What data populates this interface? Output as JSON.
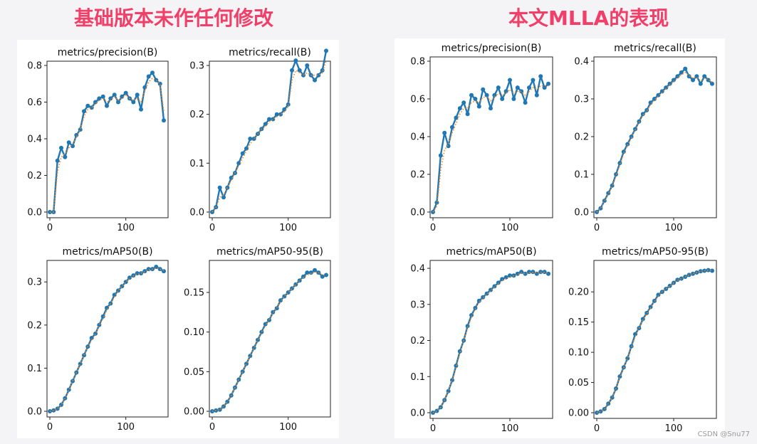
{
  "headings": {
    "left": "基础版本未作任何修改",
    "right": "本文MLLA的表现"
  },
  "watermark": "CSDN @Snu77",
  "colors": {
    "heading": "#f0406a",
    "series": "#1f77b4",
    "smooth": "#ff7f0e"
  },
  "chart_data": [
    {
      "id": "base-precision",
      "group": "left",
      "type": "line",
      "title": "metrics/precision(B)",
      "xlim": [
        0,
        150
      ],
      "ylim": [
        0,
        0.8
      ],
      "xticks": [
        0,
        100
      ],
      "yticks": [
        0.0,
        0.2,
        0.4,
        0.6,
        0.8
      ],
      "ytick_labels": [
        "0.0",
        "0.2",
        "0.4",
        "0.6",
        "0.8"
      ],
      "x": [
        0,
        5,
        10,
        15,
        20,
        25,
        30,
        35,
        40,
        45,
        50,
        55,
        60,
        65,
        70,
        75,
        80,
        85,
        90,
        95,
        100,
        105,
        110,
        115,
        120,
        125,
        130,
        135,
        140,
        145,
        150
      ],
      "y": [
        0.0,
        0.0,
        0.28,
        0.35,
        0.3,
        0.38,
        0.36,
        0.42,
        0.45,
        0.55,
        0.58,
        0.57,
        0.6,
        0.62,
        0.63,
        0.58,
        0.62,
        0.64,
        0.6,
        0.63,
        0.65,
        0.62,
        0.6,
        0.64,
        0.56,
        0.68,
        0.74,
        0.76,
        0.72,
        0.7,
        0.5
      ],
      "smooth": [
        0.0,
        0.0,
        0.22,
        0.3,
        0.32,
        0.35,
        0.37,
        0.41,
        0.45,
        0.52,
        0.56,
        0.57,
        0.59,
        0.61,
        0.62,
        0.6,
        0.61,
        0.63,
        0.61,
        0.62,
        0.64,
        0.62,
        0.61,
        0.62,
        0.6,
        0.66,
        0.71,
        0.73,
        0.72,
        0.7,
        0.55
      ]
    },
    {
      "id": "base-recall",
      "group": "left",
      "type": "line",
      "title": "metrics/recall(B)",
      "xlim": [
        0,
        150
      ],
      "ylim": [
        0,
        0.3
      ],
      "xticks": [
        0,
        100
      ],
      "yticks": [
        0.0,
        0.1,
        0.2,
        0.3
      ],
      "ytick_labels": [
        "0.0",
        "0.1",
        "0.2",
        "0.3"
      ],
      "x": [
        0,
        5,
        10,
        15,
        20,
        25,
        30,
        35,
        40,
        45,
        50,
        55,
        60,
        65,
        70,
        75,
        80,
        85,
        90,
        95,
        100,
        105,
        110,
        115,
        120,
        125,
        130,
        135,
        140,
        145,
        150
      ],
      "y": [
        0.0,
        0.01,
        0.05,
        0.03,
        0.05,
        0.07,
        0.08,
        0.1,
        0.12,
        0.13,
        0.15,
        0.15,
        0.16,
        0.17,
        0.18,
        0.19,
        0.19,
        0.2,
        0.2,
        0.21,
        0.22,
        0.29,
        0.31,
        0.29,
        0.28,
        0.3,
        0.28,
        0.27,
        0.28,
        0.29,
        0.33
      ],
      "smooth": [
        0.0,
        0.01,
        0.03,
        0.035,
        0.05,
        0.065,
        0.08,
        0.095,
        0.11,
        0.125,
        0.14,
        0.15,
        0.16,
        0.17,
        0.175,
        0.185,
        0.19,
        0.195,
        0.2,
        0.205,
        0.215,
        0.27,
        0.29,
        0.285,
        0.28,
        0.285,
        0.28,
        0.28,
        0.28,
        0.285,
        0.31
      ]
    },
    {
      "id": "base-map50",
      "group": "left",
      "type": "line",
      "title": "metrics/mAP50(B)",
      "xlim": [
        0,
        150
      ],
      "ylim": [
        0,
        0.34
      ],
      "xticks": [
        0,
        100
      ],
      "yticks": [
        0.0,
        0.1,
        0.2,
        0.3
      ],
      "ytick_labels": [
        "0.0",
        "0.1",
        "0.2",
        "0.3"
      ],
      "x": [
        0,
        5,
        10,
        15,
        20,
        25,
        30,
        35,
        40,
        45,
        50,
        55,
        60,
        65,
        70,
        75,
        80,
        85,
        90,
        95,
        100,
        105,
        110,
        115,
        120,
        125,
        130,
        135,
        140,
        145,
        150
      ],
      "y": [
        0.0,
        0.002,
        0.006,
        0.015,
        0.03,
        0.05,
        0.07,
        0.09,
        0.11,
        0.13,
        0.15,
        0.17,
        0.18,
        0.2,
        0.22,
        0.24,
        0.25,
        0.27,
        0.28,
        0.29,
        0.3,
        0.31,
        0.315,
        0.32,
        0.32,
        0.325,
        0.33,
        0.33,
        0.335,
        0.33,
        0.325
      ],
      "smooth": [
        0.0,
        0.002,
        0.006,
        0.015,
        0.03,
        0.05,
        0.07,
        0.09,
        0.11,
        0.13,
        0.15,
        0.165,
        0.18,
        0.2,
        0.215,
        0.235,
        0.25,
        0.265,
        0.28,
        0.29,
        0.3,
        0.308,
        0.314,
        0.318,
        0.32,
        0.324,
        0.328,
        0.33,
        0.332,
        0.33,
        0.327
      ]
    },
    {
      "id": "base-map50-95",
      "group": "left",
      "type": "line",
      "title": "metrics/mAP50-95(B)",
      "xlim": [
        0,
        150
      ],
      "ylim": [
        0,
        0.185
      ],
      "xticks": [
        0,
        100
      ],
      "yticks": [
        0.0,
        0.05,
        0.1,
        0.15
      ],
      "ytick_labels": [
        "0.00",
        "0.05",
        "0.10",
        "0.15"
      ],
      "x": [
        0,
        5,
        10,
        15,
        20,
        25,
        30,
        35,
        40,
        45,
        50,
        55,
        60,
        65,
        70,
        75,
        80,
        85,
        90,
        95,
        100,
        105,
        110,
        115,
        120,
        125,
        130,
        135,
        140,
        145,
        150
      ],
      "y": [
        0.0,
        0.001,
        0.002,
        0.006,
        0.012,
        0.02,
        0.03,
        0.04,
        0.05,
        0.06,
        0.07,
        0.08,
        0.09,
        0.1,
        0.11,
        0.115,
        0.125,
        0.13,
        0.14,
        0.145,
        0.15,
        0.155,
        0.16,
        0.165,
        0.17,
        0.175,
        0.175,
        0.178,
        0.175,
        0.17,
        0.172
      ],
      "smooth": [
        0.0,
        0.001,
        0.002,
        0.006,
        0.012,
        0.02,
        0.03,
        0.04,
        0.05,
        0.06,
        0.07,
        0.08,
        0.09,
        0.1,
        0.108,
        0.116,
        0.124,
        0.131,
        0.138,
        0.145,
        0.15,
        0.155,
        0.16,
        0.165,
        0.169,
        0.172,
        0.174,
        0.176,
        0.175,
        0.172,
        0.172
      ]
    },
    {
      "id": "mlla-precision",
      "group": "right",
      "type": "line",
      "title": "metrics/precision(B)",
      "xlim": [
        0,
        150
      ],
      "ylim": [
        0,
        0.8
      ],
      "xticks": [
        0,
        100
      ],
      "yticks": [
        0.0,
        0.2,
        0.4,
        0.6,
        0.8
      ],
      "ytick_labels": [
        "0.0",
        "0.2",
        "0.4",
        "0.6",
        "0.8"
      ],
      "x": [
        0,
        5,
        10,
        15,
        20,
        25,
        30,
        35,
        40,
        45,
        50,
        55,
        60,
        65,
        70,
        75,
        80,
        85,
        90,
        95,
        100,
        105,
        110,
        115,
        120,
        125,
        130,
        135,
        140,
        145,
        150
      ],
      "y": [
        0.0,
        0.05,
        0.3,
        0.42,
        0.35,
        0.45,
        0.5,
        0.55,
        0.58,
        0.52,
        0.62,
        0.6,
        0.56,
        0.65,
        0.62,
        0.55,
        0.62,
        0.66,
        0.6,
        0.64,
        0.7,
        0.6,
        0.66,
        0.64,
        0.58,
        0.66,
        0.7,
        0.62,
        0.72,
        0.66,
        0.68
      ],
      "smooth": [
        0.0,
        0.03,
        0.22,
        0.33,
        0.36,
        0.42,
        0.47,
        0.52,
        0.55,
        0.55,
        0.58,
        0.59,
        0.58,
        0.61,
        0.61,
        0.59,
        0.61,
        0.63,
        0.62,
        0.63,
        0.65,
        0.63,
        0.64,
        0.64,
        0.62,
        0.64,
        0.66,
        0.65,
        0.67,
        0.67,
        0.67
      ]
    },
    {
      "id": "mlla-recall",
      "group": "right",
      "type": "line",
      "title": "metrics/recall(B)",
      "xlim": [
        0,
        150
      ],
      "ylim": [
        0,
        0.4
      ],
      "xticks": [
        0,
        100
      ],
      "yticks": [
        0.0,
        0.1,
        0.2,
        0.3,
        0.4
      ],
      "ytick_labels": [
        "0.0",
        "0.1",
        "0.2",
        "0.3",
        "0.4"
      ],
      "x": [
        0,
        5,
        10,
        15,
        20,
        25,
        30,
        35,
        40,
        45,
        50,
        55,
        60,
        65,
        70,
        75,
        80,
        85,
        90,
        95,
        100,
        105,
        110,
        115,
        120,
        125,
        130,
        135,
        140,
        145,
        150
      ],
      "y": [
        0.0,
        0.01,
        0.03,
        0.05,
        0.07,
        0.1,
        0.13,
        0.16,
        0.18,
        0.2,
        0.22,
        0.24,
        0.26,
        0.27,
        0.29,
        0.3,
        0.31,
        0.32,
        0.33,
        0.34,
        0.35,
        0.36,
        0.37,
        0.38,
        0.36,
        0.35,
        0.36,
        0.34,
        0.36,
        0.35,
        0.34
      ],
      "smooth": [
        0.0,
        0.01,
        0.028,
        0.048,
        0.068,
        0.096,
        0.125,
        0.155,
        0.177,
        0.197,
        0.218,
        0.238,
        0.256,
        0.268,
        0.285,
        0.297,
        0.307,
        0.317,
        0.327,
        0.337,
        0.346,
        0.356,
        0.364,
        0.37,
        0.362,
        0.355,
        0.357,
        0.348,
        0.355,
        0.351,
        0.345
      ]
    },
    {
      "id": "mlla-map50",
      "group": "right",
      "type": "line",
      "title": "metrics/mAP50(B)",
      "xlim": [
        0,
        150
      ],
      "ylim": [
        0,
        0.41
      ],
      "xticks": [
        0,
        100
      ],
      "yticks": [
        0.0,
        0.1,
        0.2,
        0.3,
        0.4
      ],
      "ytick_labels": [
        "0.0",
        "0.1",
        "0.2",
        "0.3",
        "0.4"
      ],
      "x": [
        0,
        5,
        10,
        15,
        20,
        25,
        30,
        35,
        40,
        45,
        50,
        55,
        60,
        65,
        70,
        75,
        80,
        85,
        90,
        95,
        100,
        105,
        110,
        115,
        120,
        125,
        130,
        135,
        140,
        145,
        150
      ],
      "y": [
        0.0,
        0.005,
        0.015,
        0.035,
        0.06,
        0.09,
        0.13,
        0.17,
        0.2,
        0.24,
        0.27,
        0.29,
        0.31,
        0.32,
        0.33,
        0.34,
        0.35,
        0.36,
        0.37,
        0.375,
        0.38,
        0.38,
        0.385,
        0.39,
        0.385,
        0.39,
        0.39,
        0.385,
        0.39,
        0.39,
        0.385
      ],
      "smooth": [
        0.0,
        0.005,
        0.015,
        0.035,
        0.06,
        0.09,
        0.125,
        0.165,
        0.2,
        0.235,
        0.265,
        0.288,
        0.306,
        0.318,
        0.328,
        0.338,
        0.348,
        0.358,
        0.366,
        0.372,
        0.377,
        0.379,
        0.383,
        0.387,
        0.386,
        0.388,
        0.389,
        0.387,
        0.389,
        0.389,
        0.387
      ]
    },
    {
      "id": "mlla-map50-95",
      "group": "right",
      "type": "line",
      "title": "metrics/mAP50-95(B)",
      "xlim": [
        0,
        150
      ],
      "ylim": [
        0,
        0.245
      ],
      "xticks": [
        0,
        100
      ],
      "yticks": [
        0.0,
        0.05,
        0.1,
        0.15,
        0.2
      ],
      "ytick_labels": [
        "0.00",
        "0.05",
        "0.10",
        "0.15",
        "0.20"
      ],
      "x": [
        0,
        5,
        10,
        15,
        20,
        25,
        30,
        35,
        40,
        45,
        50,
        55,
        60,
        65,
        70,
        75,
        80,
        85,
        90,
        95,
        100,
        105,
        110,
        115,
        120,
        125,
        130,
        135,
        140,
        145,
        150
      ],
      "y": [
        0.0,
        0.002,
        0.006,
        0.015,
        0.025,
        0.04,
        0.06,
        0.075,
        0.09,
        0.11,
        0.13,
        0.14,
        0.155,
        0.165,
        0.175,
        0.185,
        0.195,
        0.2,
        0.205,
        0.21,
        0.215,
        0.22,
        0.222,
        0.225,
        0.228,
        0.23,
        0.232,
        0.234,
        0.235,
        0.236,
        0.235
      ],
      "smooth": [
        0.0,
        0.002,
        0.006,
        0.015,
        0.025,
        0.04,
        0.058,
        0.074,
        0.09,
        0.108,
        0.126,
        0.14,
        0.153,
        0.164,
        0.174,
        0.184,
        0.193,
        0.2,
        0.205,
        0.21,
        0.215,
        0.219,
        0.222,
        0.225,
        0.228,
        0.23,
        0.232,
        0.234,
        0.235,
        0.236,
        0.235
      ]
    }
  ]
}
